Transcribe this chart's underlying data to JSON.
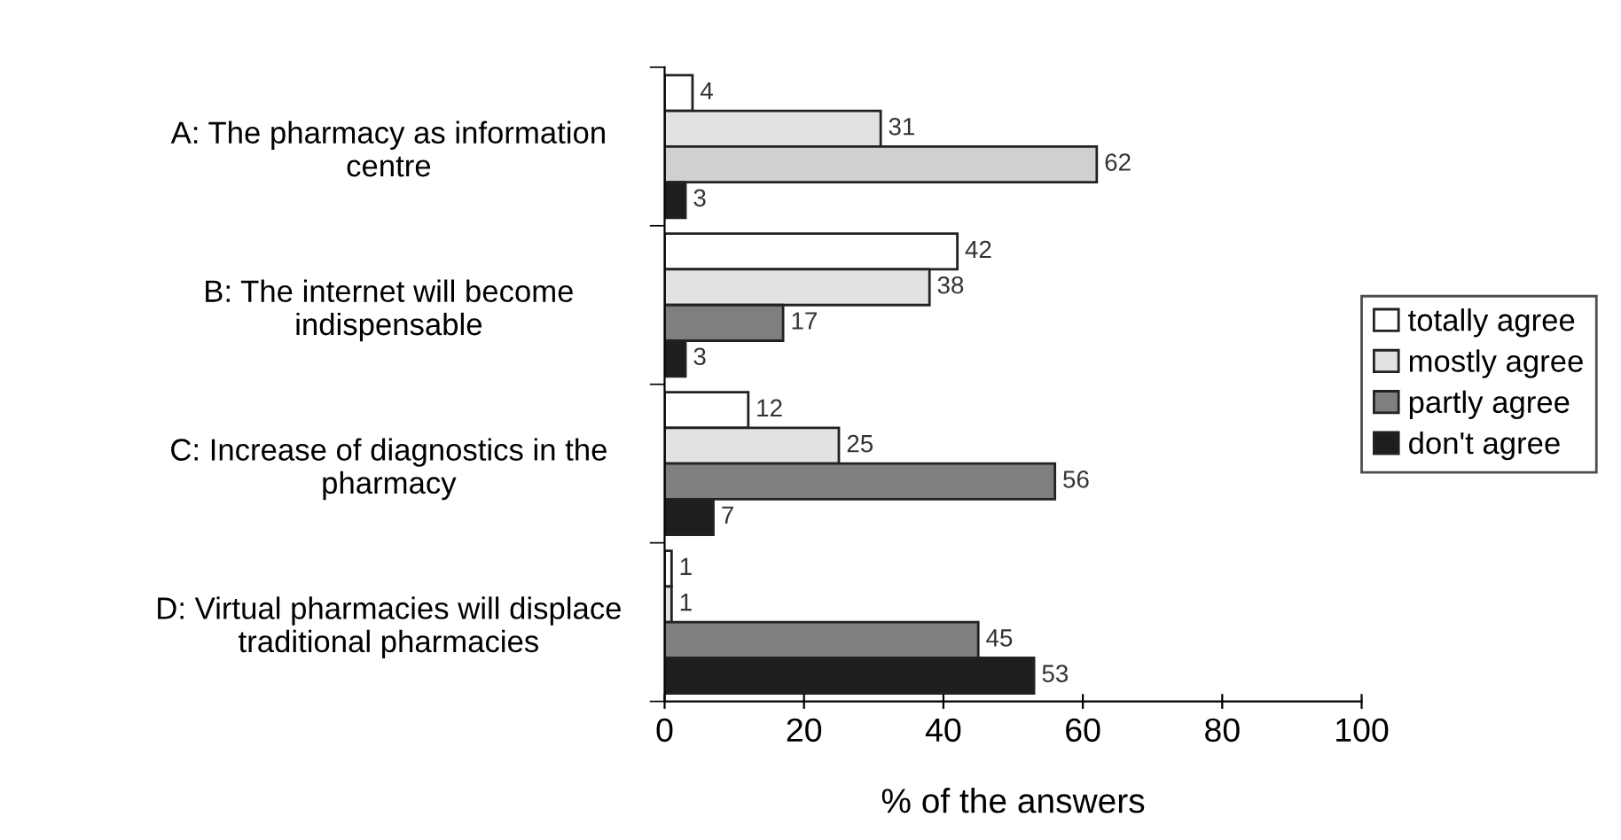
{
  "chart_data": {
    "type": "bar",
    "orientation": "horizontal",
    "xlabel": "% of the answers",
    "categories": [
      "A: The pharmacy as information\ncentre",
      "B: The internet will become\nindispensable",
      "C: Increase of diagnostics in the\npharmacy",
      "D: Virtual pharmacies will displace\ntraditional pharmacies"
    ],
    "series": [
      {
        "name": "totally agree",
        "color": "#ffffff",
        "values": [
          4,
          42,
          12,
          1
        ]
      },
      {
        "name": "mostly agree",
        "color": "#e2e2e2",
        "values": [
          31,
          38,
          25,
          1
        ]
      },
      {
        "name": "partly agree",
        "color": "#7f7f7f",
        "colors": [
          "#d0d0d0",
          "#7f7f7f",
          "#7f7f7f",
          "#7f7f7f"
        ],
        "values": [
          62,
          17,
          56,
          45
        ]
      },
      {
        "name": "don't agree",
        "color": "#1e1e1e",
        "values": [
          3,
          3,
          7,
          53
        ]
      }
    ],
    "xlim": [
      0,
      100
    ],
    "xticks": [
      0,
      20,
      40,
      60,
      80,
      100
    ],
    "data_labels": true,
    "grid": false,
    "legend": "right"
  }
}
